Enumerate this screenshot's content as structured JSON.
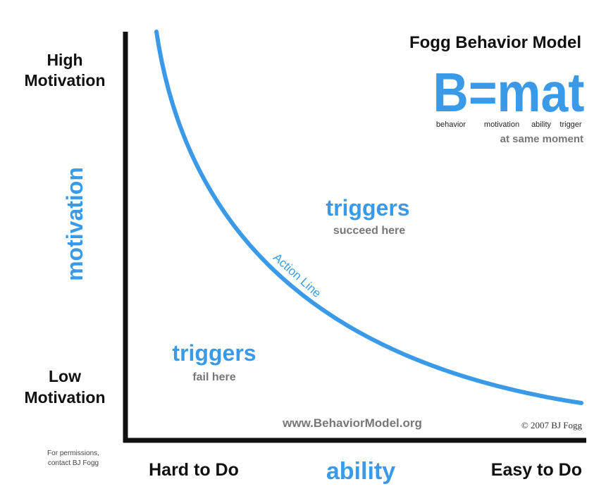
{
  "header": {
    "title": "Fogg Behavior Model",
    "formula": "B=mat",
    "formula_terms": [
      "behavior",
      "motivation",
      "ability",
      "trigger"
    ],
    "formula_note": "at same moment"
  },
  "y_axis": {
    "high": [
      "High",
      "Motivation"
    ],
    "label": "motivation",
    "low": [
      "Low",
      "Motivation"
    ]
  },
  "x_axis": {
    "low": "Hard to Do",
    "label": "ability",
    "high": "Easy to Do"
  },
  "regions": [
    {
      "heading": "triggers",
      "note": "succeed here"
    },
    {
      "heading": "triggers",
      "note": "fail here"
    }
  ],
  "curve_label": "Action Line",
  "footer": {
    "url": "www.BehaviorModel.org",
    "copyright": "© 2007 BJ Fogg",
    "permissions": [
      "For permissions,",
      "contact BJ Fogg"
    ]
  }
}
